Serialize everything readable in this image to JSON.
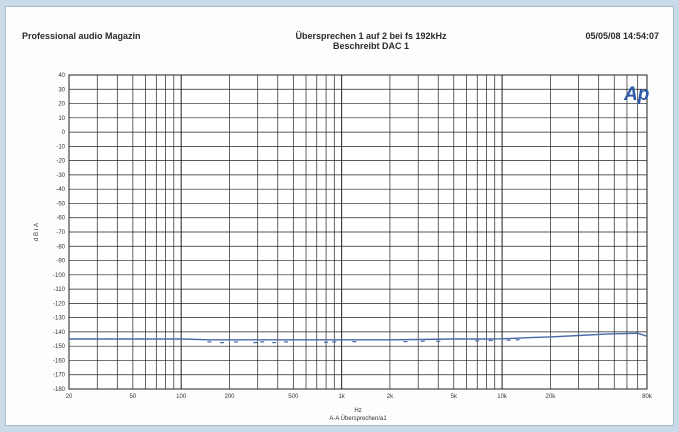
{
  "header": {
    "left": "Professional audio Magazin",
    "center_line1": "Übersprechen 1 auf 2 bei fs 192kHz",
    "center_line2": "Beschreibt DAC 1",
    "right": "05/05/08 14:54:07"
  },
  "logo": {
    "text": "Ap",
    "color": "#2d5aa8"
  },
  "chart_data": {
    "type": "line",
    "title": "Übersprechen 1 auf 2 bei fs 192kHz",
    "subtitle": "Beschreibt DAC 1",
    "xlabel": "Hz",
    "xlabel2": "A-A Übersprechen/a1",
    "ylabel": "d B r A",
    "x_scale": "log",
    "xlim": [
      20,
      80000
    ],
    "ylim": [
      -180,
      40
    ],
    "grid": true,
    "line_color": "#4a6aa8",
    "x_ticks": [
      {
        "v": 20,
        "label": "20"
      },
      {
        "v": 50,
        "label": "50"
      },
      {
        "v": 100,
        "label": "100"
      },
      {
        "v": 200,
        "label": "200"
      },
      {
        "v": 500,
        "label": "500"
      },
      {
        "v": 1000,
        "label": "1k"
      },
      {
        "v": 2000,
        "label": "2k"
      },
      {
        "v": 5000,
        "label": "5k"
      },
      {
        "v": 10000,
        "label": "10k"
      },
      {
        "v": 20000,
        "label": "20k"
      },
      {
        "v": 80000,
        "label": "80k"
      }
    ],
    "y_ticks": [
      40,
      30,
      20,
      10,
      0,
      -10,
      -20,
      -30,
      -40,
      -50,
      -60,
      -70,
      -80,
      -90,
      -100,
      -110,
      -120,
      -130,
      -140,
      -150,
      -160,
      -170,
      -180
    ],
    "series": [
      {
        "x": [
          20,
          50,
          100,
          150,
          200,
          300,
          500,
          700,
          1000,
          2000,
          3000,
          5000,
          8000,
          10000,
          15000,
          20000,
          30000,
          45000,
          70000,
          80000
        ],
        "y": [
          -145,
          -145,
          -145,
          -145.5,
          -145.5,
          -145.5,
          -145.5,
          -145.5,
          -145.5,
          -145.5,
          -145.3,
          -145,
          -145,
          -144.8,
          -144,
          -143.5,
          -142.5,
          -141.5,
          -141,
          -143
        ]
      }
    ],
    "dots": {
      "x": [
        150,
        180,
        220,
        290,
        320,
        380,
        450,
        800,
        900,
        1200,
        2500,
        3200,
        4000,
        7000,
        8500,
        11000,
        12500
      ],
      "y": [
        -147,
        -147.5,
        -147,
        -147.5,
        -147,
        -147.5,
        -147,
        -147.3,
        -147,
        -146.8,
        -146.8,
        -146.5,
        -146.6,
        -146.3,
        -146,
        -145.8,
        -145.5
      ]
    }
  }
}
